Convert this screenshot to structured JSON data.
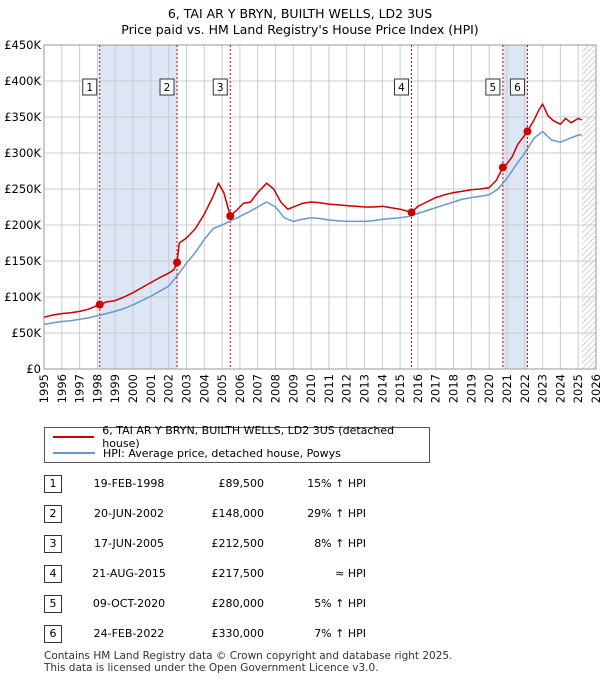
{
  "header": {
    "title_line1": "6, TAI AR Y BRYN, BUILTH WELLS, LD2 3US",
    "title_line2": "Price paid vs. HM Land Registry's House Price Index (HPI)"
  },
  "colors": {
    "price_line": "#cc0000",
    "hpi_line": "#6699cc",
    "shade": "#dde6f5",
    "grid": "#cccccc",
    "marker": "#cc0000"
  },
  "chart_data": {
    "type": "line",
    "xlim": [
      1995,
      2026
    ],
    "ylim": [
      0,
      450000
    ],
    "y_ticks": [
      0,
      50000,
      100000,
      150000,
      200000,
      250000,
      300000,
      350000,
      400000,
      450000
    ],
    "y_tick_labels": [
      "£0",
      "£50K",
      "£100K",
      "£150K",
      "£200K",
      "£250K",
      "£300K",
      "£350K",
      "£400K",
      "£450K"
    ],
    "x_ticks": [
      1995,
      1996,
      1997,
      1998,
      1999,
      2000,
      2001,
      2002,
      2003,
      2004,
      2005,
      2006,
      2007,
      2008,
      2009,
      2010,
      2011,
      2012,
      2013,
      2014,
      2015,
      2016,
      2017,
      2018,
      2019,
      2020,
      2021,
      2022,
      2023,
      2024,
      2025,
      2026
    ],
    "x_tick_labels": [
      "1995",
      "1996",
      "1997",
      "1998",
      "1999",
      "2000",
      "2001",
      "2002",
      "2003",
      "2004",
      "2005",
      "2006",
      "2007",
      "2008",
      "2009",
      "2010",
      "2011",
      "2012",
      "2013",
      "2014",
      "2015",
      "2016",
      "2017",
      "2018",
      "2019",
      "2020",
      "2021",
      "2022",
      "2023",
      "2024",
      "2025",
      "2026"
    ],
    "shaded_spans": [
      [
        1998.13,
        2002.47
      ],
      [
        2020.77,
        2022.15
      ]
    ],
    "hatched_from": 2025.2,
    "series": [
      {
        "name": "6, TAI AR Y BRYN, BUILTH WELLS, LD2 3US (detached house)",
        "x": [
          1995.0,
          1995.5,
          1996.0,
          1996.5,
          1997.0,
          1997.5,
          1998.13,
          1998.5,
          1999.0,
          1999.5,
          2000.0,
          2000.5,
          2001.0,
          2001.5,
          2002.0,
          2002.3,
          2002.47,
          2002.6,
          2003.0,
          2003.5,
          2004.0,
          2004.5,
          2004.8,
          2005.1,
          2005.46,
          2005.8,
          2006.2,
          2006.6,
          2007.0,
          2007.5,
          2007.9,
          2008.3,
          2008.7,
          2009.1,
          2009.5,
          2010.0,
          2010.5,
          2011.0,
          2011.5,
          2012.0,
          2012.5,
          2013.0,
          2013.5,
          2014.0,
          2014.5,
          2015.0,
          2015.64,
          2016.0,
          2016.5,
          2017.0,
          2017.5,
          2018.0,
          2018.5,
          2019.0,
          2019.5,
          2020.0,
          2020.4,
          2020.77,
          2021.0,
          2021.3,
          2021.6,
          2022.0,
          2022.15,
          2022.5,
          2022.8,
          2023.0,
          2023.3,
          2023.6,
          2024.0,
          2024.3,
          2024.6,
          2025.0,
          2025.2
        ],
        "values": [
          72000,
          75000,
          77000,
          78000,
          80000,
          83000,
          89500,
          93000,
          95000,
          100000,
          106000,
          113000,
          120000,
          127000,
          133000,
          138000,
          148000,
          175000,
          182000,
          195000,
          215000,
          240000,
          258000,
          245000,
          212500,
          220000,
          230000,
          232000,
          245000,
          258000,
          250000,
          232000,
          222000,
          226000,
          230000,
          232000,
          231000,
          229000,
          228000,
          227000,
          226000,
          225000,
          225000,
          226000,
          224000,
          222000,
          217500,
          226000,
          232000,
          238000,
          242000,
          245000,
          247000,
          249000,
          250000,
          252000,
          262000,
          280000,
          285000,
          295000,
          312000,
          325000,
          330000,
          345000,
          360000,
          368000,
          352000,
          345000,
          340000,
          348000,
          342000,
          348000,
          346000
        ]
      },
      {
        "name": "HPI: Average price, detached house, Powys",
        "x": [
          1995.0,
          1995.5,
          1996.0,
          1996.5,
          1997.0,
          1997.5,
          1998.0,
          1998.5,
          1999.0,
          1999.5,
          2000.0,
          2000.5,
          2001.0,
          2001.5,
          2002.0,
          2002.5,
          2003.0,
          2003.5,
          2004.0,
          2004.5,
          2005.0,
          2005.5,
          2006.0,
          2006.5,
          2007.0,
          2007.5,
          2008.0,
          2008.5,
          2009.0,
          2009.5,
          2010.0,
          2010.5,
          2011.0,
          2011.5,
          2012.0,
          2012.5,
          2013.0,
          2013.5,
          2014.0,
          2014.5,
          2015.0,
          2015.5,
          2016.0,
          2016.5,
          2017.0,
          2017.5,
          2018.0,
          2018.5,
          2019.0,
          2019.5,
          2020.0,
          2020.5,
          2021.0,
          2021.5,
          2022.0,
          2022.5,
          2023.0,
          2023.5,
          2024.0,
          2024.5,
          2025.0,
          2025.2
        ],
        "values": [
          62000,
          64000,
          66000,
          67000,
          69000,
          71000,
          74000,
          77000,
          80000,
          84000,
          89000,
          95000,
          101000,
          108000,
          115000,
          130000,
          147000,
          162000,
          180000,
          195000,
          200000,
          206000,
          212000,
          218000,
          225000,
          232000,
          225000,
          210000,
          205000,
          208000,
          210000,
          209000,
          207000,
          206000,
          205000,
          205000,
          205000,
          206000,
          208000,
          209000,
          210000,
          212000,
          216000,
          220000,
          224000,
          228000,
          232000,
          236000,
          238000,
          240000,
          242000,
          250000,
          265000,
          283000,
          300000,
          320000,
          330000,
          318000,
          315000,
          320000,
          325000,
          325000
        ]
      }
    ],
    "markers": [
      {
        "label": "1",
        "x": 1998.13,
        "y": 89500
      },
      {
        "label": "2",
        "x": 2002.47,
        "y": 148000
      },
      {
        "label": "3",
        "x": 2005.46,
        "y": 212500
      },
      {
        "label": "4",
        "x": 2015.64,
        "y": 217500
      },
      {
        "label": "5",
        "x": 2020.77,
        "y": 280000
      },
      {
        "label": "6",
        "x": 2022.15,
        "y": 330000
      }
    ]
  },
  "legend": {
    "price_label": "6, TAI AR Y BRYN, BUILTH WELLS, LD2 3US (detached house)",
    "hpi_label": "HPI: Average price, detached house, Powys"
  },
  "sales": [
    {
      "num": "1",
      "date": "19-FEB-1998",
      "price": "£89,500",
      "hpi": "15% ↑ HPI"
    },
    {
      "num": "2",
      "date": "20-JUN-2002",
      "price": "£148,000",
      "hpi": "29% ↑ HPI"
    },
    {
      "num": "3",
      "date": "17-JUN-2005",
      "price": "£212,500",
      "hpi": "8% ↑ HPI"
    },
    {
      "num": "4",
      "date": "21-AUG-2015",
      "price": "£217,500",
      "hpi": "≈ HPI"
    },
    {
      "num": "5",
      "date": "09-OCT-2020",
      "price": "£280,000",
      "hpi": "5% ↑ HPI"
    },
    {
      "num": "6",
      "date": "24-FEB-2022",
      "price": "£330,000",
      "hpi": "7% ↑ HPI"
    }
  ],
  "footer": {
    "line1": "Contains HM Land Registry data © Crown copyright and database right 2025.",
    "line2": "This data is licensed under the Open Government Licence v3.0."
  }
}
